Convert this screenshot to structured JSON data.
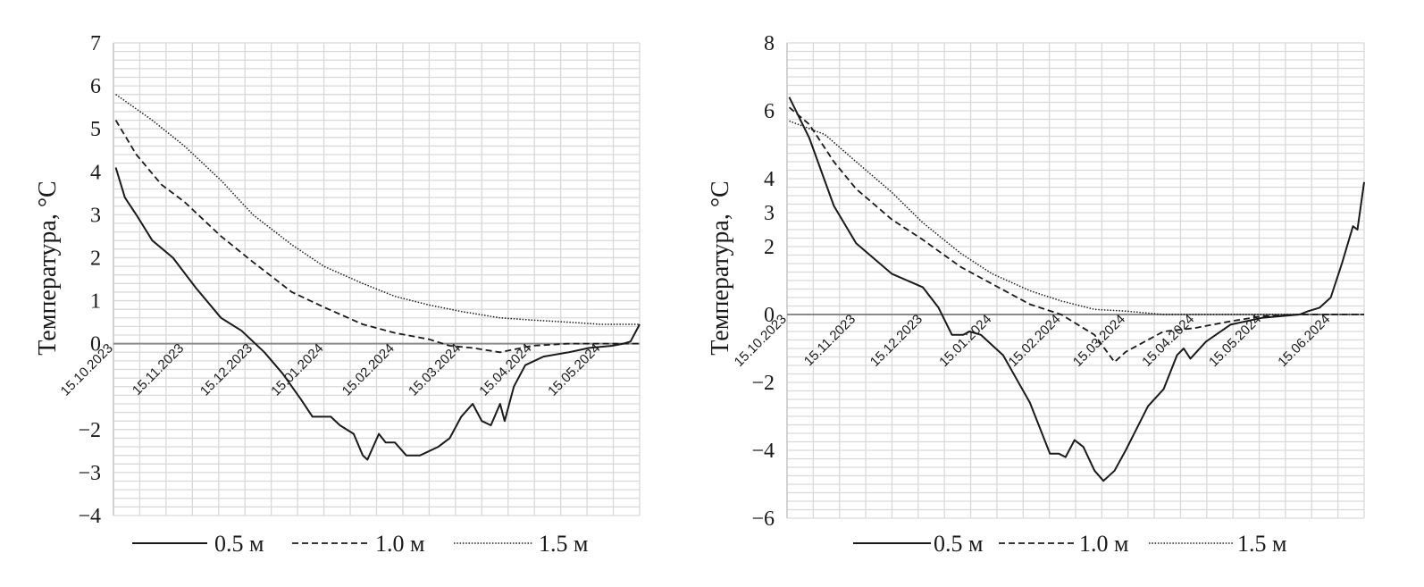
{
  "chart_data": [
    {
      "type": "line",
      "ylabel": "Температура, °C",
      "ylim": [
        -4,
        7
      ],
      "yticks": [
        -4,
        -3,
        -2,
        -1,
        0,
        1,
        2,
        3,
        4,
        5,
        6,
        7
      ],
      "ytick_labels": [
        "−4",
        "−3",
        "−2",
        "",
        "0",
        "1",
        "2",
        "3",
        "4",
        "5",
        "6",
        "7"
      ],
      "xlim": [
        "2023-10-15",
        "2024-06-01"
      ],
      "xticks": [
        "2023-10-15",
        "2023-11-15",
        "2023-12-15",
        "2024-01-15",
        "2024-02-15",
        "2024-03-15",
        "2024-04-15",
        "2024-05-15"
      ],
      "xtick_labels": [
        "15.10.2023",
        "15.11.2023",
        "15.12.2023",
        "15.01.2024",
        "15.02.2024",
        "15.03.2024",
        "15.04.2024",
        "15.05.2024"
      ],
      "grid": true,
      "legend": "bottom",
      "series": [
        {
          "name": "0.5 м",
          "style": "solid",
          "points": [
            [
              "2023-10-16",
              4.1
            ],
            [
              "2023-10-20",
              3.4
            ],
            [
              "2023-10-25",
              3.0
            ],
            [
              "2023-11-01",
              2.4
            ],
            [
              "2023-11-10",
              2.0
            ],
            [
              "2023-11-20",
              1.3
            ],
            [
              "2023-12-01",
              0.6
            ],
            [
              "2023-12-10",
              0.3
            ],
            [
              "2023-12-20",
              -0.2
            ],
            [
              "2023-12-28",
              -0.7
            ],
            [
              "2024-01-05",
              -1.3
            ],
            [
              "2024-01-10",
              -1.7
            ],
            [
              "2024-01-18",
              -1.7
            ],
            [
              "2024-01-22",
              -1.9
            ],
            [
              "2024-01-28",
              -2.1
            ],
            [
              "2024-02-01",
              -2.6
            ],
            [
              "2024-02-03",
              -2.7
            ],
            [
              "2024-02-08",
              -2.1
            ],
            [
              "2024-02-11",
              -2.3
            ],
            [
              "2024-02-15",
              -2.3
            ],
            [
              "2024-02-20",
              -2.6
            ],
            [
              "2024-02-26",
              -2.6
            ],
            [
              "2024-03-05",
              -2.4
            ],
            [
              "2024-03-10",
              -2.2
            ],
            [
              "2024-03-15",
              -1.7
            ],
            [
              "2024-03-20",
              -1.4
            ],
            [
              "2024-03-24",
              -1.8
            ],
            [
              "2024-03-28",
              -1.9
            ],
            [
              "2024-04-01",
              -1.4
            ],
            [
              "2024-04-03",
              -1.8
            ],
            [
              "2024-04-07",
              -1.0
            ],
            [
              "2024-04-12",
              -0.5
            ],
            [
              "2024-04-20",
              -0.3
            ],
            [
              "2024-05-01",
              -0.2
            ],
            [
              "2024-05-10",
              -0.1
            ],
            [
              "2024-05-20",
              -0.05
            ],
            [
              "2024-05-25",
              0.0
            ],
            [
              "2024-05-28",
              0.05
            ],
            [
              "2024-06-01",
              0.45
            ]
          ]
        },
        {
          "name": "1.0 м",
          "style": "dashed",
          "points": [
            [
              "2023-10-16",
              5.2
            ],
            [
              "2023-10-25",
              4.4
            ],
            [
              "2023-11-05",
              3.7
            ],
            [
              "2023-11-15",
              3.3
            ],
            [
              "2023-12-01",
              2.5
            ],
            [
              "2023-12-15",
              1.9
            ],
            [
              "2024-01-01",
              1.2
            ],
            [
              "2024-01-15",
              0.85
            ],
            [
              "2024-02-01",
              0.45
            ],
            [
              "2024-02-15",
              0.25
            ],
            [
              "2024-03-01",
              0.1
            ],
            [
              "2024-03-10",
              -0.05
            ],
            [
              "2024-03-20",
              -0.1
            ],
            [
              "2024-04-01",
              -0.2
            ],
            [
              "2024-04-15",
              -0.05
            ],
            [
              "2024-05-01",
              0.0
            ],
            [
              "2024-06-01",
              0.0
            ]
          ]
        },
        {
          "name": "1.5 м",
          "style": "dotted",
          "points": [
            [
              "2023-10-16",
              5.8
            ],
            [
              "2023-11-01",
              5.2
            ],
            [
              "2023-11-15",
              4.6
            ],
            [
              "2023-12-01",
              3.8
            ],
            [
              "2023-12-15",
              3.0
            ],
            [
              "2024-01-01",
              2.3
            ],
            [
              "2024-01-15",
              1.8
            ],
            [
              "2024-02-01",
              1.4
            ],
            [
              "2024-02-15",
              1.1
            ],
            [
              "2024-03-01",
              0.9
            ],
            [
              "2024-03-15",
              0.75
            ],
            [
              "2024-04-01",
              0.6
            ],
            [
              "2024-04-15",
              0.55
            ],
            [
              "2024-05-01",
              0.5
            ],
            [
              "2024-05-15",
              0.45
            ],
            [
              "2024-06-01",
              0.45
            ]
          ]
        }
      ]
    },
    {
      "type": "line",
      "ylabel": "Температура, °C",
      "ylim": [
        -6,
        8
      ],
      "yticks": [
        -6,
        -4,
        -2,
        0,
        2,
        3,
        4,
        6,
        8
      ],
      "ytick_labels": [
        "−6",
        "−4",
        "−2",
        "0",
        "2",
        "3",
        "4",
        "6",
        "8"
      ],
      "xlim": [
        "2023-10-15",
        "2024-06-30"
      ],
      "xticks": [
        "2023-10-15",
        "2023-11-15",
        "2023-12-15",
        "2024-01-15",
        "2024-02-15",
        "2024-03-15",
        "2024-04-15",
        "2024-05-15",
        "2024-06-15"
      ],
      "xtick_labels": [
        "15.10.2023",
        "15.11.2023",
        "15.12.2023",
        "15.01.2024",
        "15.02.2024",
        "15.03.2024",
        "15.04.2024",
        "15.05.2024",
        "15.06.2024"
      ],
      "grid": true,
      "legend": "bottom",
      "series": [
        {
          "name": "0.5 м",
          "style": "solid",
          "points": [
            [
              "2023-10-16",
              6.4
            ],
            [
              "2023-10-25",
              5.2
            ],
            [
              "2023-11-05",
              3.2
            ],
            [
              "2023-11-15",
              2.1
            ],
            [
              "2023-12-01",
              1.2
            ],
            [
              "2023-12-15",
              0.8
            ],
            [
              "2023-12-22",
              0.2
            ],
            [
              "2023-12-28",
              -0.6
            ],
            [
              "2024-01-02",
              -0.6
            ],
            [
              "2024-01-05",
              -0.5
            ],
            [
              "2024-01-10",
              -0.6
            ],
            [
              "2024-01-20",
              -1.2
            ],
            [
              "2024-02-01",
              -2.6
            ],
            [
              "2024-02-10",
              -4.1
            ],
            [
              "2024-02-14",
              -4.1
            ],
            [
              "2024-02-17",
              -4.2
            ],
            [
              "2024-02-21",
              -3.7
            ],
            [
              "2024-02-25",
              -3.9
            ],
            [
              "2024-03-01",
              -4.6
            ],
            [
              "2024-03-05",
              -4.9
            ],
            [
              "2024-03-10",
              -4.6
            ],
            [
              "2024-03-15",
              -4.0
            ],
            [
              "2024-03-25",
              -2.7
            ],
            [
              "2024-04-01",
              -2.2
            ],
            [
              "2024-04-07",
              -1.2
            ],
            [
              "2024-04-10",
              -1.0
            ],
            [
              "2024-04-13",
              -1.3
            ],
            [
              "2024-04-20",
              -0.8
            ],
            [
              "2024-05-01",
              -0.3
            ],
            [
              "2024-05-15",
              -0.1
            ],
            [
              "2024-06-01",
              0.0
            ],
            [
              "2024-06-05",
              0.1
            ],
            [
              "2024-06-10",
              0.2
            ],
            [
              "2024-06-15",
              0.5
            ],
            [
              "2024-06-20",
              1.5
            ],
            [
              "2024-06-25",
              2.6
            ],
            [
              "2024-06-27",
              2.5
            ],
            [
              "2024-06-30",
              3.9
            ]
          ]
        },
        {
          "name": "1.0 м",
          "style": "dashed",
          "points": [
            [
              "2023-10-16",
              6.1
            ],
            [
              "2023-10-25",
              5.6
            ],
            [
              "2023-11-05",
              4.5
            ],
            [
              "2023-11-15",
              3.7
            ],
            [
              "2023-12-01",
              2.8
            ],
            [
              "2023-12-15",
              2.2
            ],
            [
              "2024-01-01",
              1.4
            ],
            [
              "2024-01-15",
              0.9
            ],
            [
              "2024-02-01",
              0.3
            ],
            [
              "2024-02-15",
              0.0
            ],
            [
              "2024-03-01",
              -0.6
            ],
            [
              "2024-03-10",
              -1.4
            ],
            [
              "2024-03-15",
              -1.1
            ],
            [
              "2024-04-01",
              -0.5
            ],
            [
              "2024-04-15",
              -0.4
            ],
            [
              "2024-05-01",
              -0.2
            ],
            [
              "2024-05-15",
              -0.05
            ],
            [
              "2024-06-01",
              0.0
            ],
            [
              "2024-06-30",
              0.0
            ]
          ]
        },
        {
          "name": "1.5 м",
          "style": "dotted",
          "points": [
            [
              "2023-10-16",
              5.7
            ],
            [
              "2023-11-01",
              5.3
            ],
            [
              "2023-11-15",
              4.5
            ],
            [
              "2023-12-01",
              3.6
            ],
            [
              "2023-12-15",
              2.7
            ],
            [
              "2024-01-01",
              1.8
            ],
            [
              "2024-01-15",
              1.2
            ],
            [
              "2024-02-01",
              0.7
            ],
            [
              "2024-02-15",
              0.4
            ],
            [
              "2024-03-01",
              0.15
            ],
            [
              "2024-03-15",
              0.1
            ],
            [
              "2024-04-01",
              0.0
            ],
            [
              "2024-06-30",
              0.0
            ]
          ]
        }
      ]
    }
  ]
}
